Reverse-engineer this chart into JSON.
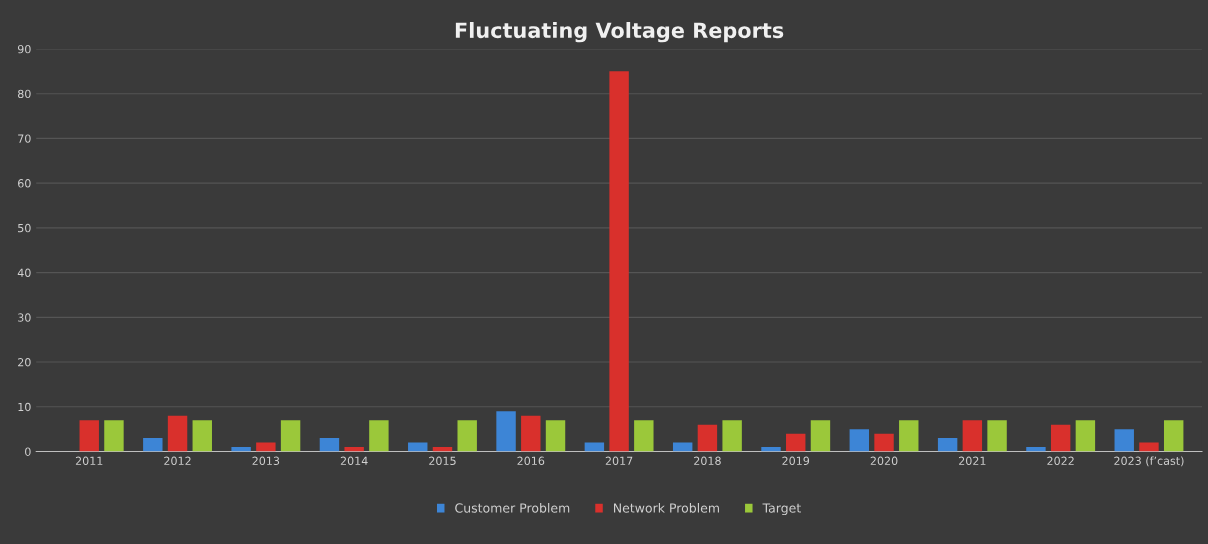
{
  "chart_data": {
    "type": "bar",
    "title": "Fluctuating Voltage Reports",
    "categories": [
      "2011",
      "2012",
      "2013",
      "2014",
      "2015",
      "2016",
      "2017",
      "2018",
      "2019",
      "2020",
      "2021",
      "2022",
      "2023 (f’cast)"
    ],
    "series": [
      {
        "name": "Customer Problem",
        "color": "#3d85d6",
        "values": [
          0,
          3,
          1,
          3,
          2,
          9,
          2,
          2,
          1,
          5,
          3,
          1,
          5
        ]
      },
      {
        "name": "Network Problem",
        "color": "#d9302c",
        "values": [
          7,
          8,
          2,
          1,
          1,
          8,
          85,
          6,
          4,
          4,
          7,
          6,
          2
        ]
      },
      {
        "name": "Target",
        "color": "#9bc83a",
        "values": [
          7,
          7,
          7,
          7,
          7,
          7,
          7,
          7,
          7,
          7,
          7,
          7,
          7
        ]
      }
    ],
    "ylim": [
      0,
      90
    ],
    "yticks": [
      0,
      10,
      20,
      30,
      40,
      50,
      60,
      70,
      80,
      90
    ],
    "grid": "y",
    "legend": "bottom"
  }
}
